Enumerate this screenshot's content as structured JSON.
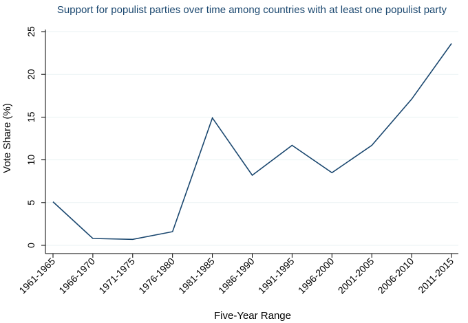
{
  "chart_data": {
    "type": "line",
    "title": "Support for populist parties over time among countries with at least one populist party",
    "xlabel": "Five-Year Range",
    "ylabel": "Vote Share (%)",
    "categories": [
      "1961-1965",
      "1966-1970",
      "1971-1975",
      "1976-1980",
      "1981-1985",
      "1986-1990",
      "1991-1995",
      "1996-2000",
      "2001-2005",
      "2006-2010",
      "2011-2015"
    ],
    "series": [
      {
        "values": [
          5.1,
          0.8,
          0.7,
          1.6,
          14.9,
          8.2,
          11.7,
          8.5,
          11.7,
          17.1,
          23.6
        ]
      }
    ],
    "ylim": [
      0,
      25
    ],
    "yticks": [
      0,
      5,
      10,
      15,
      20,
      25
    ],
    "grid": "horizontal",
    "legend": "none",
    "colors": {
      "title": "#1a476f",
      "line": "#1a476f",
      "grid": "#eaf2f3"
    }
  }
}
